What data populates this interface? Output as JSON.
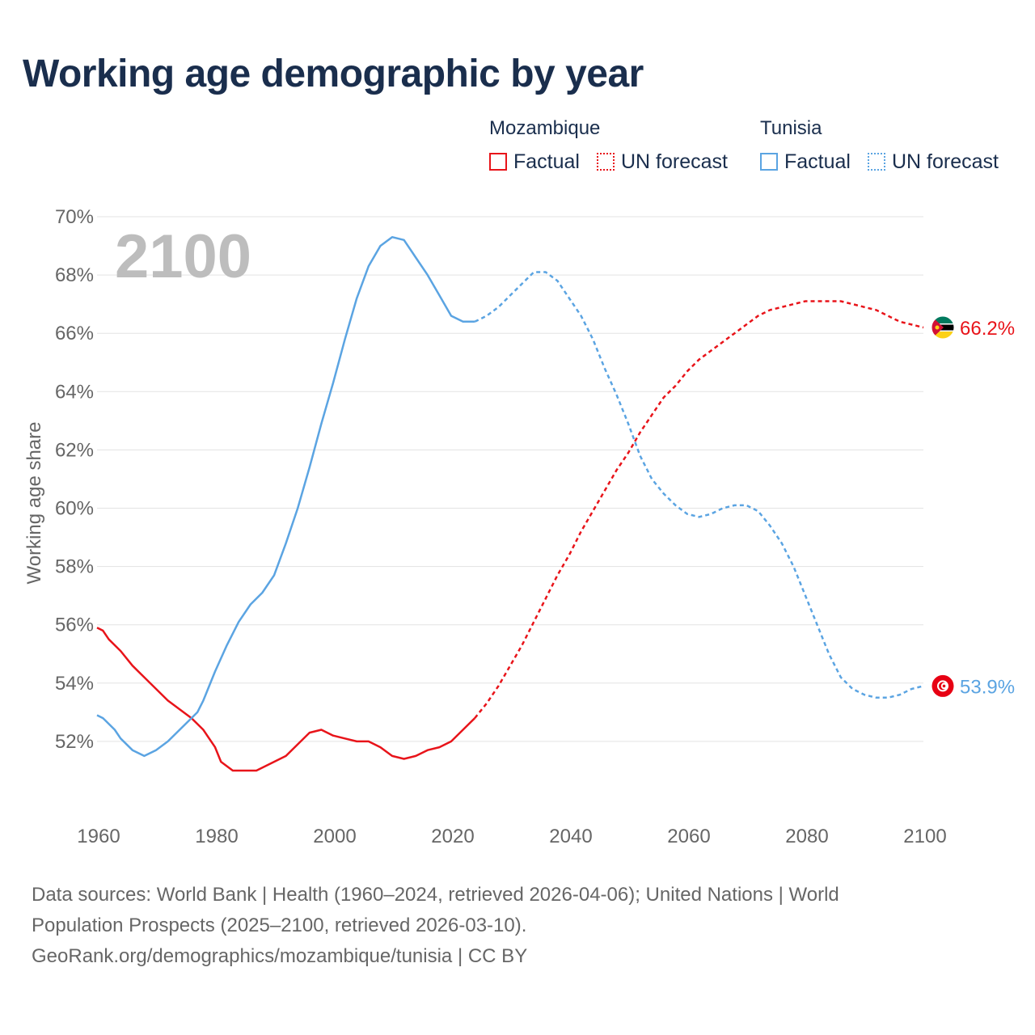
{
  "title": "Working age demographic by year",
  "legend": {
    "groups": [
      {
        "name": "Mozambique",
        "factual_label": "Factual",
        "forecast_label": "UN forecast",
        "color": "#e8141a"
      },
      {
        "name": "Tunisia",
        "factual_label": "Factual",
        "forecast_label": "UN forecast",
        "color": "#5ba4e2"
      }
    ]
  },
  "year_watermark": "2100",
  "footer": {
    "line1": "Data sources: World Bank | Health (1960–2024, retrieved 2026-04-06); United Nations | World",
    "line2": "Population Prospects (2025–2100, retrieved 2026-03-10).",
    "line3": "GeoRank.org/demographics/mozambique/tunisia | CC BY"
  },
  "chart_data": {
    "type": "line",
    "title": "Working age demographic by year",
    "xlabel": "",
    "ylabel": "Working age share",
    "xlim": [
      1960,
      2100
    ],
    "ylim": [
      50,
      70
    ],
    "x_ticks": [
      1960,
      1980,
      2000,
      2020,
      2040,
      2060,
      2080,
      2100
    ],
    "x_tick_labels": [
      "1960",
      "1980",
      "2000",
      "2020",
      "2040",
      "2060",
      "2080",
      "2100"
    ],
    "y_ticks": [
      52,
      54,
      56,
      58,
      60,
      62,
      64,
      66,
      68,
      70
    ],
    "y_tick_labels": [
      "52%",
      "54%",
      "56%",
      "58%",
      "60%",
      "62%",
      "64%",
      "66%",
      "68%",
      "70%"
    ],
    "grid": true,
    "factual_end": 2024,
    "series": [
      {
        "name": "Mozambique",
        "color": "#e8141a",
        "end_label": "66.2%",
        "flag": "mozambique-flag",
        "points": [
          [
            1960,
            55.9
          ],
          [
            1961,
            55.8
          ],
          [
            1962,
            55.5
          ],
          [
            1964,
            55.1
          ],
          [
            1966,
            54.6
          ],
          [
            1968,
            54.2
          ],
          [
            1970,
            53.8
          ],
          [
            1972,
            53.4
          ],
          [
            1974,
            53.1
          ],
          [
            1976,
            52.8
          ],
          [
            1978,
            52.4
          ],
          [
            1980,
            51.8
          ],
          [
            1981,
            51.3
          ],
          [
            1983,
            51.0
          ],
          [
            1985,
            51.0
          ],
          [
            1987,
            51.0
          ],
          [
            1989,
            51.2
          ],
          [
            1992,
            51.5
          ],
          [
            1994,
            51.9
          ],
          [
            1996,
            52.3
          ],
          [
            1998,
            52.4
          ],
          [
            2000,
            52.2
          ],
          [
            2002,
            52.1
          ],
          [
            2004,
            52.0
          ],
          [
            2006,
            52.0
          ],
          [
            2008,
            51.8
          ],
          [
            2010,
            51.5
          ],
          [
            2012,
            51.4
          ],
          [
            2014,
            51.5
          ],
          [
            2016,
            51.7
          ],
          [
            2018,
            51.8
          ],
          [
            2020,
            52.0
          ],
          [
            2022,
            52.4
          ],
          [
            2024,
            52.8
          ],
          [
            2026,
            53.3
          ],
          [
            2028,
            53.9
          ],
          [
            2030,
            54.6
          ],
          [
            2032,
            55.3
          ],
          [
            2034,
            56.1
          ],
          [
            2036,
            56.9
          ],
          [
            2038,
            57.7
          ],
          [
            2040,
            58.4
          ],
          [
            2042,
            59.2
          ],
          [
            2044,
            59.9
          ],
          [
            2046,
            60.6
          ],
          [
            2048,
            61.3
          ],
          [
            2050,
            61.9
          ],
          [
            2052,
            62.6
          ],
          [
            2054,
            63.2
          ],
          [
            2056,
            63.8
          ],
          [
            2058,
            64.2
          ],
          [
            2060,
            64.7
          ],
          [
            2062,
            65.1
          ],
          [
            2064,
            65.4
          ],
          [
            2066,
            65.7
          ],
          [
            2068,
            66.0
          ],
          [
            2070,
            66.3
          ],
          [
            2072,
            66.6
          ],
          [
            2074,
            66.8
          ],
          [
            2076,
            66.9
          ],
          [
            2078,
            67.0
          ],
          [
            2080,
            67.1
          ],
          [
            2082,
            67.1
          ],
          [
            2084,
            67.1
          ],
          [
            2086,
            67.1
          ],
          [
            2088,
            67.0
          ],
          [
            2090,
            66.9
          ],
          [
            2092,
            66.8
          ],
          [
            2094,
            66.6
          ],
          [
            2096,
            66.4
          ],
          [
            2098,
            66.3
          ],
          [
            2100,
            66.2
          ]
        ]
      },
      {
        "name": "Tunisia",
        "color": "#5ba4e2",
        "end_label": "53.9%",
        "flag": "tunisia-flag",
        "points": [
          [
            1960,
            52.9
          ],
          [
            1961,
            52.8
          ],
          [
            1963,
            52.4
          ],
          [
            1964,
            52.1
          ],
          [
            1966,
            51.7
          ],
          [
            1968,
            51.5
          ],
          [
            1970,
            51.7
          ],
          [
            1972,
            52.0
          ],
          [
            1974,
            52.4
          ],
          [
            1976,
            52.8
          ],
          [
            1977,
            53.0
          ],
          [
            1978,
            53.4
          ],
          [
            1980,
            54.4
          ],
          [
            1982,
            55.3
          ],
          [
            1984,
            56.1
          ],
          [
            1986,
            56.7
          ],
          [
            1988,
            57.1
          ],
          [
            1990,
            57.7
          ],
          [
            1992,
            58.8
          ],
          [
            1994,
            60.0
          ],
          [
            1996,
            61.4
          ],
          [
            1998,
            62.9
          ],
          [
            2000,
            64.3
          ],
          [
            2002,
            65.8
          ],
          [
            2004,
            67.2
          ],
          [
            2006,
            68.3
          ],
          [
            2008,
            69.0
          ],
          [
            2010,
            69.3
          ],
          [
            2012,
            69.2
          ],
          [
            2014,
            68.6
          ],
          [
            2016,
            68.0
          ],
          [
            2018,
            67.3
          ],
          [
            2020,
            66.6
          ],
          [
            2022,
            66.4
          ],
          [
            2024,
            66.4
          ],
          [
            2026,
            66.6
          ],
          [
            2028,
            66.9
          ],
          [
            2030,
            67.3
          ],
          [
            2032,
            67.7
          ],
          [
            2034,
            68.1
          ],
          [
            2036,
            68.1
          ],
          [
            2038,
            67.8
          ],
          [
            2040,
            67.2
          ],
          [
            2042,
            66.6
          ],
          [
            2044,
            65.8
          ],
          [
            2046,
            64.8
          ],
          [
            2048,
            63.9
          ],
          [
            2050,
            62.9
          ],
          [
            2052,
            61.8
          ],
          [
            2054,
            61.0
          ],
          [
            2056,
            60.5
          ],
          [
            2058,
            60.1
          ],
          [
            2060,
            59.8
          ],
          [
            2062,
            59.7
          ],
          [
            2064,
            59.8
          ],
          [
            2066,
            60.0
          ],
          [
            2068,
            60.1
          ],
          [
            2070,
            60.1
          ],
          [
            2072,
            59.9
          ],
          [
            2074,
            59.4
          ],
          [
            2076,
            58.8
          ],
          [
            2078,
            58.0
          ],
          [
            2080,
            57.0
          ],
          [
            2082,
            56.0
          ],
          [
            2084,
            55.0
          ],
          [
            2086,
            54.2
          ],
          [
            2088,
            53.8
          ],
          [
            2090,
            53.6
          ],
          [
            2092,
            53.5
          ],
          [
            2094,
            53.5
          ],
          [
            2096,
            53.6
          ],
          [
            2098,
            53.8
          ],
          [
            2100,
            53.9
          ]
        ]
      }
    ]
  }
}
